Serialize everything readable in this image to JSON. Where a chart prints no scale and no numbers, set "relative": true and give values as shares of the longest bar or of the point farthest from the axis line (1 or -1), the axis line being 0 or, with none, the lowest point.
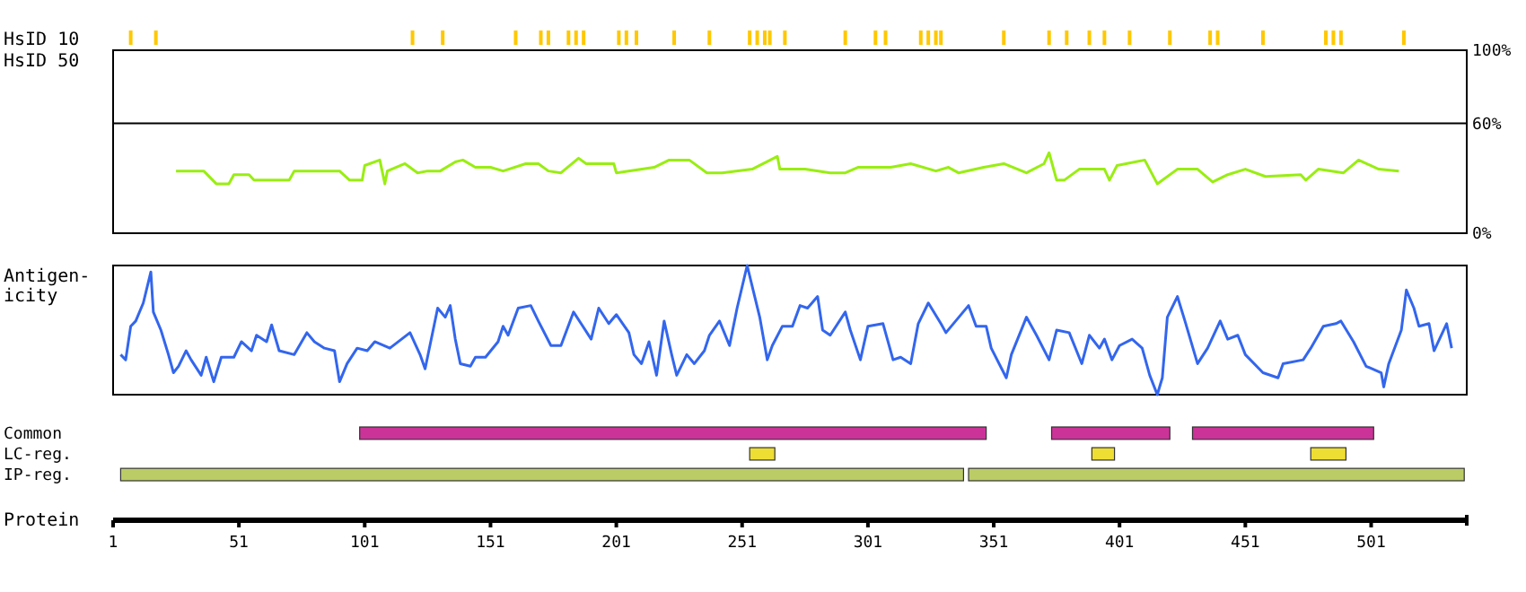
{
  "chart_data": [
    {
      "type": "bar",
      "ylabel": "HsID 10",
      "relative": true,
      "xlim": [
        1,
        539
      ],
      "tick_labels": false,
      "color": "#ffc800",
      "x": [
        8,
        18,
        120,
        132,
        161,
        171,
        174,
        182,
        185,
        188,
        202,
        205,
        209,
        224,
        238,
        254,
        257,
        260,
        262,
        268,
        292,
        304,
        308,
        322,
        325,
        328,
        330,
        355,
        373,
        380,
        389,
        395,
        405,
        421,
        437,
        440,
        458,
        483,
        486,
        489,
        514
      ],
      "values": [
        1,
        1,
        1,
        1,
        1,
        1,
        1,
        1,
        1,
        1,
        1,
        1,
        1,
        1,
        1,
        1,
        1,
        1,
        1,
        1,
        1,
        1,
        1,
        1,
        1,
        1,
        1,
        1,
        1,
        1,
        1,
        1,
        1,
        1,
        1,
        1,
        1,
        1,
        1,
        1,
        1
      ]
    },
    {
      "type": "line",
      "ylabel": "HsID 50",
      "xlim": [
        1,
        539
      ],
      "ylim": [
        0,
        100
      ],
      "yticks": [
        {
          "value": 100,
          "label": "100%"
        },
        {
          "value": 60,
          "label": "60%"
        },
        {
          "value": 0,
          "label": "0%"
        }
      ],
      "tick_labels": "y",
      "ref_lines": [
        {
          "axis": "y",
          "value": 60,
          "color": "#000000"
        }
      ],
      "series": [
        {
          "color": "#99ee11",
          "x": [
            26,
            37,
            42,
            47,
            49,
            55,
            57,
            71,
            73,
            91,
            95,
            100,
            101,
            107,
            109,
            110,
            117,
            122,
            126,
            131,
            137,
            140,
            145,
            151,
            156,
            165,
            170,
            174,
            179,
            186,
            189,
            200,
            201,
            216,
            222,
            230,
            237,
            243,
            255,
            265,
            266,
            276,
            286,
            292,
            297,
            310,
            318,
            328,
            333,
            337,
            347,
            355,
            364,
            371,
            373,
            376,
            379,
            385,
            395,
            397,
            400,
            411,
            416,
            424,
            432,
            438,
            444,
            451,
            459,
            473,
            475,
            480,
            490,
            496,
            504,
            512
          ],
          "values": [
            34,
            34,
            27,
            27,
            32,
            32,
            29,
            29,
            34,
            34,
            29,
            29,
            37,
            40,
            27,
            34,
            38,
            33,
            34,
            34,
            39,
            40,
            36,
            36,
            34,
            38,
            38,
            34,
            33,
            41,
            38,
            38,
            33,
            36,
            40,
            40,
            33,
            33,
            35,
            42,
            35,
            35,
            33,
            33,
            36,
            36,
            38,
            34,
            36,
            33,
            36,
            38,
            33,
            38,
            44,
            29,
            29,
            35,
            35,
            29,
            37,
            40,
            27,
            35,
            35,
            28,
            32,
            35,
            31,
            32,
            29,
            35,
            33,
            40,
            35,
            34
          ]
        }
      ]
    },
    {
      "type": "line",
      "ylabel": "Antigen-\nicity",
      "relative": true,
      "xlim": [
        1,
        539
      ],
      "tick_labels": false,
      "series": [
        {
          "color": "#3366ee",
          "x": [
            4,
            6,
            8,
            10,
            13,
            16,
            17,
            20,
            23,
            25,
            27,
            30,
            32,
            36,
            38,
            41,
            44,
            49,
            52,
            56,
            58,
            62,
            64,
            67,
            73,
            78,
            81,
            85,
            89,
            91,
            94,
            98,
            102,
            105,
            111,
            119,
            123,
            125,
            130,
            133,
            135,
            137,
            139,
            143,
            145,
            149,
            154,
            156,
            158,
            162,
            167,
            170,
            175,
            179,
            184,
            187,
            191,
            194,
            198,
            201,
            206,
            208,
            211,
            214,
            217,
            220,
            223,
            225,
            229,
            232,
            236,
            238,
            242,
            246,
            249,
            253,
            256,
            258,
            261,
            263,
            267,
            271,
            274,
            277,
            281,
            283,
            286,
            292,
            294,
            298,
            301,
            307,
            311,
            314,
            318,
            321,
            325,
            330,
            332,
            341,
            344,
            348,
            350,
            356,
            358,
            364,
            368,
            373,
            376,
            381,
            386,
            389,
            393,
            395,
            398,
            401,
            406,
            410,
            413,
            416,
            418,
            420,
            424,
            427,
            432,
            436,
            441,
            444,
            448,
            451,
            458,
            464,
            466,
            474,
            477,
            482,
            487,
            489,
            494,
            499,
            505,
            506,
            508,
            513,
            515,
            518,
            520,
            524,
            526,
            531,
            533
          ],
          "values": [
            0.31,
            0.27,
            0.53,
            0.57,
            0.71,
            0.95,
            0.64,
            0.5,
            0.31,
            0.17,
            0.22,
            0.34,
            0.27,
            0.15,
            0.29,
            0.1,
            0.29,
            0.29,
            0.41,
            0.34,
            0.46,
            0.41,
            0.54,
            0.34,
            0.31,
            0.48,
            0.41,
            0.36,
            0.34,
            0.1,
            0.24,
            0.36,
            0.34,
            0.41,
            0.36,
            0.48,
            0.31,
            0.2,
            0.67,
            0.6,
            0.69,
            0.43,
            0.24,
            0.22,
            0.29,
            0.29,
            0.41,
            0.53,
            0.46,
            0.67,
            0.69,
            0.57,
            0.38,
            0.38,
            0.64,
            0.55,
            0.43,
            0.67,
            0.55,
            0.62,
            0.48,
            0.31,
            0.24,
            0.41,
            0.15,
            0.57,
            0.31,
            0.15,
            0.31,
            0.24,
            0.34,
            0.46,
            0.57,
            0.38,
            0.67,
            1,
            0.76,
            0.6,
            0.27,
            0.38,
            0.53,
            0.53,
            0.69,
            0.67,
            0.76,
            0.5,
            0.46,
            0.64,
            0.5,
            0.27,
            0.53,
            0.55,
            0.27,
            0.29,
            0.24,
            0.55,
            0.71,
            0.55,
            0.48,
            0.69,
            0.53,
            0.53,
            0.36,
            0.13,
            0.31,
            0.6,
            0.46,
            0.27,
            0.5,
            0.48,
            0.24,
            0.46,
            0.36,
            0.43,
            0.27,
            0.38,
            0.43,
            0.36,
            0.15,
            0,
            0.13,
            0.6,
            0.76,
            0.57,
            0.24,
            0.36,
            0.57,
            0.43,
            0.46,
            0.31,
            0.17,
            0.13,
            0.24,
            0.27,
            0.36,
            0.53,
            0.55,
            0.57,
            0.41,
            0.22,
            0.17,
            0.06,
            0.24,
            0.5,
            0.81,
            0.67,
            0.53,
            0.55,
            0.34,
            0.55,
            0.36
          ]
        }
      ]
    },
    {
      "type": "bar",
      "orientation": "horizontal",
      "xlabel": "Protein",
      "xlim": [
        1,
        539
      ],
      "xticks": [
        1,
        51,
        101,
        151,
        201,
        251,
        301,
        351,
        401,
        451,
        501
      ],
      "categories": [
        "Common",
        "LC-reg.",
        "IP-reg."
      ],
      "series": [
        {
          "values": [
            249,
            10,
            335
          ],
          "base": [
            99,
            254,
            4
          ],
          "colors": [
            "#cc3399",
            "#eedd33",
            "#bbcc66"
          ]
        },
        {
          "values": [
            47,
            9,
            197
          ],
          "base": [
            374,
            390,
            341
          ],
          "colors": [
            "#cc3399",
            "#eedd33",
            "#bbcc66"
          ]
        },
        {
          "values": [
            72,
            14,
            null
          ],
          "base": [
            430,
            477,
            null
          ],
          "colors": [
            "#cc3399",
            "#eedd33",
            null
          ]
        }
      ]
    }
  ]
}
